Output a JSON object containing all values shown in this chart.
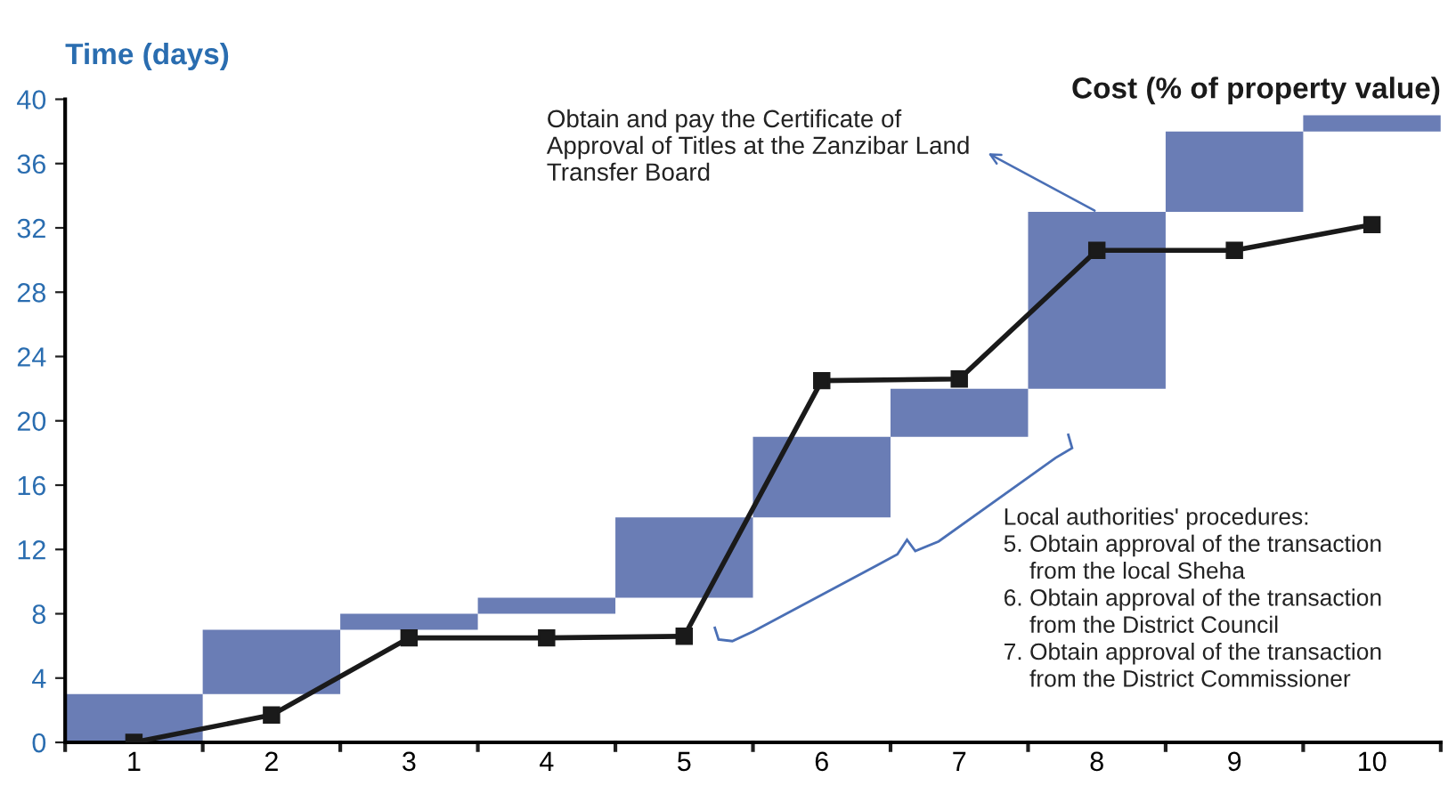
{
  "chart_data": {
    "type": "bar",
    "ylabel": "Time (days)",
    "y2label": "Cost (% of property value)",
    "categories": [
      "1",
      "2",
      "3",
      "4",
      "5",
      "6",
      "7",
      "8",
      "9",
      "10"
    ],
    "series": [
      {
        "color": "#6a7db5",
        "values": [
          3,
          4,
          1,
          1,
          5,
          5,
          3,
          11,
          5,
          1
        ],
        "base": [
          0,
          3,
          7,
          8,
          9,
          14,
          19,
          22,
          33,
          38
        ]
      },
      {
        "type": "line",
        "color": "#1a1a1a",
        "marker": "square",
        "line_style": "solid",
        "values": [
          0,
          1.7,
          6.5,
          6.5,
          6.6,
          22.5,
          22.6,
          30.6,
          30.6,
          32.2
        ]
      }
    ],
    "ylim": [
      0,
      40
    ],
    "yticks": [
      0,
      4,
      8,
      12,
      16,
      20,
      24,
      28,
      32,
      36,
      40
    ],
    "grid": false,
    "legend": false,
    "annotations": [
      {
        "text": "Obtain and pay the Certificate of\nApproval of Titles at the Zanzibar Land\nTransfer Board",
        "x": "8",
        "y": 33
      },
      "Local authorities' procedures:\n5. Obtain approval of the transaction\n    from the local Sheha\n6. Obtain approval of the transaction\n    from the District Council\n7. Obtain approval of the transaction\n    from the District Commissioner"
    ]
  }
}
